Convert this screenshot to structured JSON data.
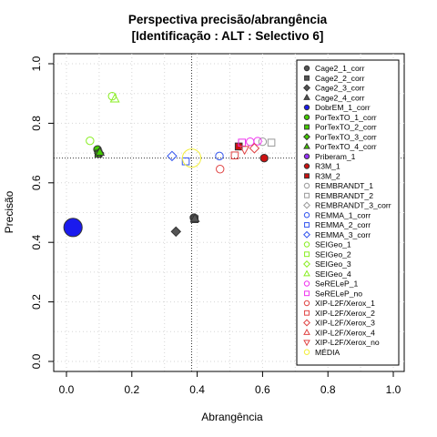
{
  "chart_data": {
    "type": "scatter",
    "title": "Perspectiva precisão/abrangência",
    "subtitle": "[Identificação : ALT : Selectivo 6]",
    "xlabel": "Abrangência",
    "ylabel": "Precisão",
    "xlim": [
      0,
      1
    ],
    "ylim": [
      0,
      1
    ],
    "xticks": [
      "0.0",
      "0.2",
      "0.4",
      "0.6",
      "0.8",
      "1.0"
    ],
    "yticks": [
      "0.0",
      "0.2",
      "0.4",
      "0.6",
      "0.8",
      "1.0"
    ],
    "grid": true,
    "legend_position": "top-right",
    "reference_lines": {
      "x": 0.383,
      "y": 0.683
    },
    "series": [
      {
        "name": "Cage2_1_corr",
        "marker": "circle",
        "color": "#555555",
        "fill": true,
        "points": [
          [
            0.39,
            0.483
          ]
        ]
      },
      {
        "name": "Cage2_2_corr",
        "marker": "square",
        "color": "#555555",
        "fill": true,
        "points": [
          [
            0.392,
            0.478
          ]
        ]
      },
      {
        "name": "Cage2_3_corr",
        "marker": "diamond",
        "color": "#555555",
        "fill": true,
        "points": [
          [
            0.335,
            0.436
          ]
        ]
      },
      {
        "name": "Cage2_4_corr",
        "marker": "triangle",
        "color": "#555555",
        "fill": true,
        "points": [
          [
            0.393,
            0.48
          ]
        ]
      },
      {
        "name": "DobrEM_1_corr",
        "marker": "circle",
        "color": "#1a1aee",
        "fill": true,
        "size": 2.4,
        "points": [
          [
            0.02,
            0.45
          ]
        ]
      },
      {
        "name": "PorTexTO_1_corr",
        "marker": "circle",
        "color": "#44cc00",
        "fill": true,
        "points": [
          [
            0.095,
            0.712
          ]
        ]
      },
      {
        "name": "PorTexTO_2_corr",
        "marker": "square",
        "color": "#44cc00",
        "fill": true,
        "points": [
          [
            0.098,
            0.698
          ]
        ]
      },
      {
        "name": "PorTexTO_3_corr",
        "marker": "diamond",
        "color": "#44cc00",
        "fill": true,
        "points": [
          [
            0.1,
            0.7
          ]
        ]
      },
      {
        "name": "PorTexTO_4_corr",
        "marker": "triangle",
        "color": "#44cc00",
        "fill": true,
        "points": [
          [
            0.102,
            0.703
          ]
        ]
      },
      {
        "name": "Priberam_1",
        "marker": "circle",
        "color": "#9933ff",
        "fill": true,
        "points": []
      },
      {
        "name": "R3M_1",
        "marker": "circle",
        "color": "#cc1111",
        "fill": true,
        "points": [
          [
            0.605,
            0.683
          ]
        ]
      },
      {
        "name": "R3M_2",
        "marker": "square",
        "color": "#cc1111",
        "fill": true,
        "points": [
          [
            0.527,
            0.722
          ]
        ]
      },
      {
        "name": "REMBRANDT_1",
        "marker": "circle",
        "color": "#999999",
        "fill": false,
        "points": [
          [
            0.6,
            0.738
          ]
        ]
      },
      {
        "name": "REMBRANDT_2",
        "marker": "square",
        "color": "#999999",
        "fill": false,
        "points": [
          [
            0.627,
            0.735
          ]
        ]
      },
      {
        "name": "REMBRANDT_3_corr",
        "marker": "diamond",
        "color": "#999999",
        "fill": false,
        "points": []
      },
      {
        "name": "REMMA_1_corr",
        "marker": "circle",
        "color": "#3355ee",
        "fill": false,
        "points": [
          [
            0.468,
            0.69
          ]
        ]
      },
      {
        "name": "REMMA_2_corr",
        "marker": "square",
        "color": "#3355ee",
        "fill": false,
        "points": [
          [
            0.365,
            0.672
          ]
        ]
      },
      {
        "name": "REMMA_3_corr",
        "marker": "diamond",
        "color": "#3355ee",
        "fill": false,
        "points": [
          [
            0.323,
            0.69
          ]
        ]
      },
      {
        "name": "SEIGeo_1",
        "marker": "circle",
        "color": "#88ee22",
        "fill": false,
        "points": [
          [
            0.072,
            0.741
          ],
          [
            0.14,
            0.891
          ]
        ]
      },
      {
        "name": "SEIGeo_2",
        "marker": "square",
        "color": "#88ee22",
        "fill": false,
        "points": []
      },
      {
        "name": "SEIGeo_3",
        "marker": "diamond",
        "color": "#88ee22",
        "fill": false,
        "points": []
      },
      {
        "name": "SEIGeo_4",
        "marker": "triangle",
        "color": "#88ee22",
        "fill": false,
        "points": [
          [
            0.148,
            0.882
          ]
        ]
      },
      {
        "name": "SeRELeP_1",
        "marker": "circle",
        "color": "#ee33ee",
        "fill": false,
        "points": [
          [
            0.562,
            0.738
          ],
          [
            0.585,
            0.74
          ]
        ]
      },
      {
        "name": "SeRELeP_no",
        "marker": "square",
        "color": "#ee33ee",
        "fill": false,
        "points": [
          [
            0.537,
            0.735
          ]
        ]
      },
      {
        "name": "XIP-L2F/Xerox_1",
        "marker": "circle",
        "color": "#e04444",
        "fill": false,
        "points": [
          [
            0.47,
            0.646
          ]
        ]
      },
      {
        "name": "XIP-L2F/Xerox_2",
        "marker": "square",
        "color": "#e04444",
        "fill": false,
        "points": [
          [
            0.515,
            0.692
          ]
        ]
      },
      {
        "name": "XIP-L2F/Xerox_3",
        "marker": "diamond",
        "color": "#e04444",
        "fill": false,
        "points": [
          [
            0.575,
            0.716
          ]
        ]
      },
      {
        "name": "XIP-L2F/Xerox_4",
        "marker": "triangle",
        "color": "#e04444",
        "fill": false,
        "points": []
      },
      {
        "name": "XIP-L2F/Xerox_no",
        "marker": "triangle-down",
        "color": "#e04444",
        "fill": false,
        "points": [
          [
            0.545,
            0.712
          ]
        ]
      },
      {
        "name": "MÉDIA",
        "marker": "circle",
        "color": "#f2ee3a",
        "fill": false,
        "size": 2.4,
        "points": [
          [
            0.383,
            0.683
          ]
        ]
      }
    ]
  }
}
